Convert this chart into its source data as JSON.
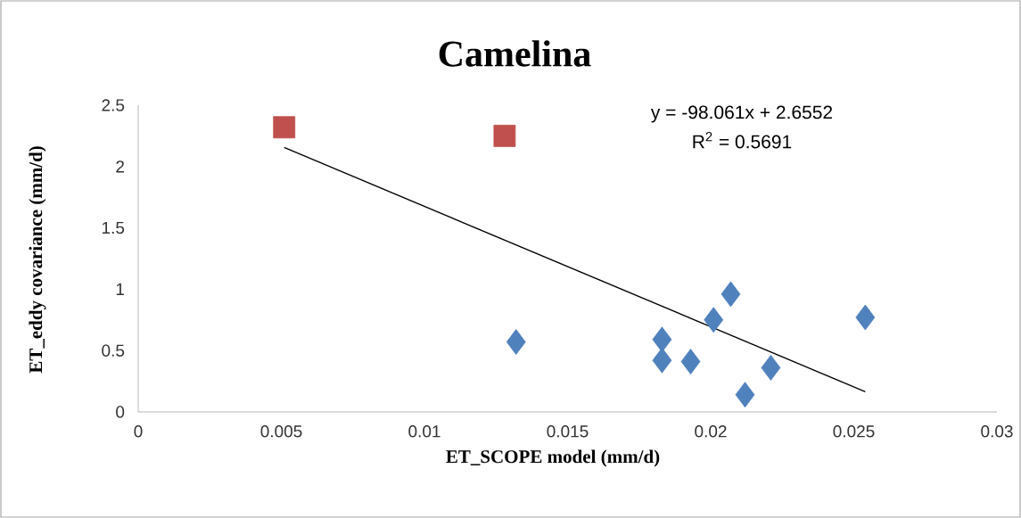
{
  "chart_data": {
    "type": "scatter",
    "title": "Camelina",
    "xlabel": "ET_SCOPE model (mm/d)",
    "ylabel": "ET_eddy covariance (mm/d)",
    "xlim": [
      0,
      0.03
    ],
    "ylim": [
      0,
      2.5
    ],
    "xticks": [
      0,
      0.005,
      0.01,
      0.015,
      0.02,
      0.025,
      0.03
    ],
    "yticks": [
      0,
      0.5,
      1,
      1.5,
      2,
      2.5
    ],
    "annotations": [
      "y = -98.061x + 2.6552",
      "R$^{2}$ = 0.5691"
    ],
    "series": [
      {
        "marker": "diamond",
        "color": "#4f81bd",
        "x": [
          0.0132,
          0.0183,
          0.0183,
          0.0193,
          0.0201,
          0.0207,
          0.0212,
          0.0221,
          0.0254
        ],
        "values": [
          0.57,
          0.59,
          0.42,
          0.41,
          0.75,
          0.96,
          0.14,
          0.36,
          0.77
        ]
      },
      {
        "marker": "square",
        "color": "#c0504d",
        "x": [
          0.0051,
          0.0128
        ],
        "values": [
          2.32,
          2.25
        ]
      },
      {
        "type": "line",
        "marker": "none",
        "color": "#000000",
        "x": [
          0.0051,
          0.0254
        ],
        "values": [
          2.155,
          0.165
        ]
      }
    ]
  }
}
